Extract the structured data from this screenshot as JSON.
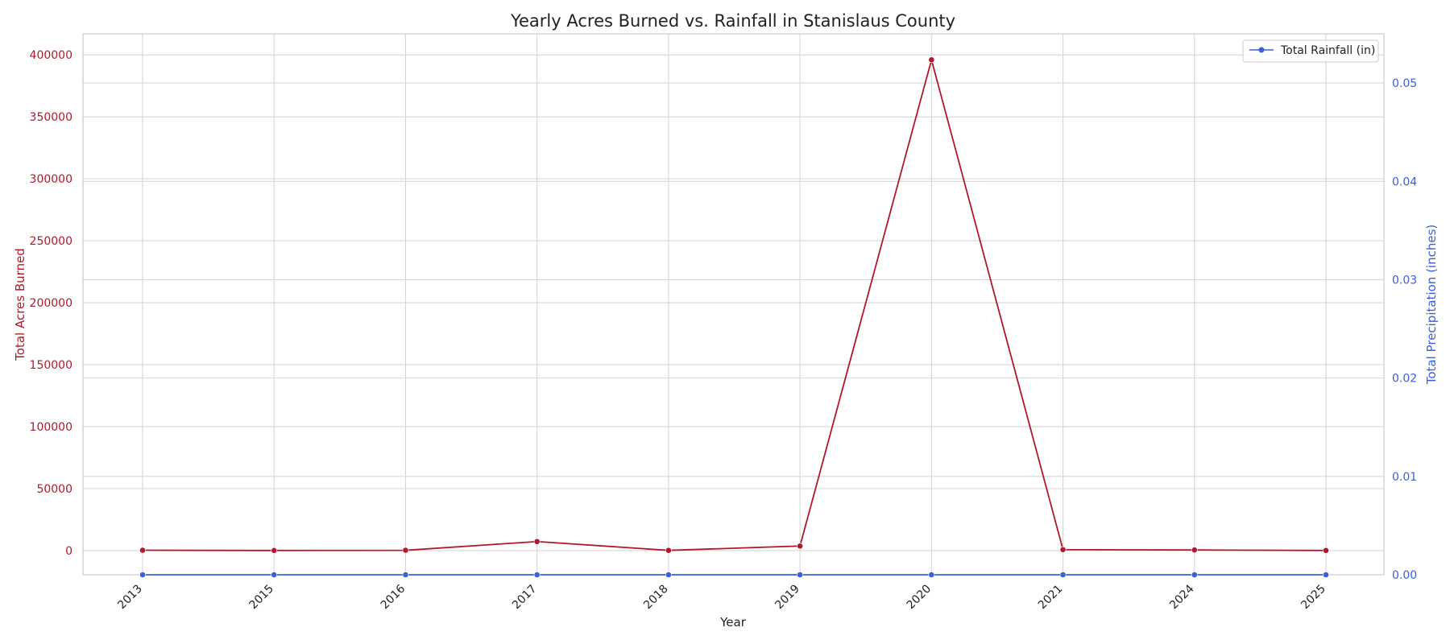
{
  "chart_data": {
    "type": "line",
    "title": "Yearly Acres Burned vs. Rainfall in Stanislaus County",
    "xlabel": "Year",
    "categories": [
      "2013",
      "2015",
      "2016",
      "2017",
      "2018",
      "2019",
      "2020",
      "2021",
      "2024",
      "2025"
    ],
    "grid": true,
    "legend_position": "top-right",
    "axes": {
      "left": {
        "label": "Total Acres Burned",
        "ylim": [
          -19500,
          417000
        ],
        "ticks": [
          0,
          50000,
          100000,
          150000,
          200000,
          250000,
          300000,
          350000,
          400000
        ],
        "color": "#b2182b"
      },
      "right": {
        "label": "Total Precipitation (inches)",
        "ylim": [
          0.0,
          0.055
        ],
        "ticks": [
          "0.00",
          "0.01",
          "0.02",
          "0.03",
          "0.04",
          "0.05"
        ],
        "color": "#3a5fe0"
      }
    },
    "series": [
      {
        "axis": "left",
        "color": "#b2182b",
        "values": [
          300,
          100,
          250,
          7300,
          200,
          3700,
          396000,
          800,
          500,
          100
        ]
      },
      {
        "name": "Total Rainfall (in)",
        "axis": "right",
        "color": "#3a5fe0",
        "values": [
          0,
          0,
          0,
          0,
          0,
          0,
          0,
          0,
          0,
          0
        ]
      }
    ]
  }
}
